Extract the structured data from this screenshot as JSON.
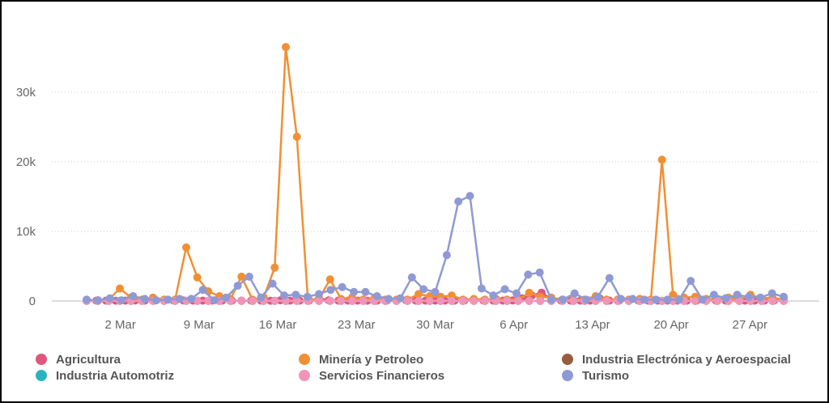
{
  "chart_data": {
    "type": "line",
    "x_tick_labels": [
      "2 Mar",
      "9 Mar",
      "16 Mar",
      "23 Mar",
      "30 Mar",
      "6 Apr",
      "13 Apr",
      "20 Apr",
      "27 Apr"
    ],
    "y_tick_labels": [
      "0",
      "10k",
      "20k",
      "30k"
    ],
    "y_ticks": [
      0,
      10000,
      20000,
      30000
    ],
    "ylim": [
      0,
      38000
    ],
    "x_start": "2020-02-28",
    "x_end": "2020-04-30",
    "grid": true,
    "legend_position": "bottom",
    "series": [
      {
        "name": "Agricultura",
        "color": "#e0567e",
        "values": [
          50,
          60,
          60,
          50,
          60,
          80,
          60,
          60,
          60,
          60,
          80,
          60,
          60,
          60,
          60,
          50,
          60,
          60,
          60,
          50,
          100,
          60,
          60,
          80,
          400,
          100,
          60,
          60,
          60,
          50,
          60,
          60,
          60,
          100,
          60,
          60,
          60,
          60,
          60,
          60,
          60,
          60,
          60,
          60,
          80,
          400,
          800,
          1200,
          300,
          60,
          60,
          60,
          60,
          400,
          60,
          60,
          60,
          60,
          60,
          60,
          60,
          60,
          60,
          60,
          60,
          60,
          60,
          400,
          60,
          60,
          60,
          60,
          60
        ]
      },
      {
        "name": "Minería y Petroleo",
        "color": "#f28f34",
        "values": [
          100,
          100,
          200,
          1800,
          500,
          200,
          500,
          200,
          200,
          7700,
          3400,
          1400,
          700,
          300,
          3500,
          200,
          500,
          4800,
          36500,
          23600,
          200,
          300,
          3100,
          300,
          500,
          200,
          400,
          200,
          200,
          200,
          1000,
          700,
          600,
          800,
          200,
          300,
          200,
          300,
          200,
          200,
          1200,
          600,
          500,
          200,
          200,
          200,
          700,
          200,
          200,
          200,
          300,
          200,
          20300,
          900,
          500,
          600,
          300,
          200,
          500,
          200,
          900,
          400,
          500,
          200
        ]
      },
      {
        "name": "Industria Electrónica y Aeroespacial",
        "color": "#975d3d",
        "values": [
          30,
          30,
          30,
          30,
          30,
          30,
          30,
          30,
          30,
          30,
          30,
          30,
          30,
          30,
          30,
          30,
          30,
          30,
          30,
          30,
          30,
          30,
          30,
          30,
          30,
          30,
          30,
          30,
          30,
          30,
          30,
          30,
          30,
          30,
          30,
          30,
          30,
          30,
          30,
          30,
          30,
          30,
          30,
          30,
          30,
          30,
          30,
          30,
          30,
          30,
          30,
          30,
          30,
          30,
          30,
          30,
          30,
          30,
          30,
          30,
          30,
          30,
          30,
          30
        ]
      },
      {
        "name": "Industria Automotriz",
        "color": "#2ab3bf",
        "values": [
          40,
          40,
          40,
          40,
          40,
          40,
          40,
          40,
          40,
          40,
          40,
          40,
          40,
          40,
          40,
          40,
          40,
          40,
          40,
          40,
          40,
          40,
          40,
          40,
          40,
          40,
          40,
          40,
          40,
          40,
          40,
          40,
          40,
          40,
          40,
          40,
          40,
          40,
          40,
          40,
          40,
          40,
          40,
          40,
          40,
          40,
          40,
          40,
          40,
          40,
          40,
          40,
          40,
          40,
          40,
          40,
          40,
          40,
          40,
          40,
          40,
          40,
          40,
          40
        ]
      },
      {
        "name": "Servicios Financieros",
        "color": "#f194b8",
        "values": [
          20,
          20,
          20,
          20,
          20,
          20,
          20,
          20,
          20,
          20,
          20,
          20,
          20,
          20,
          20,
          20,
          20,
          20,
          20,
          20,
          20,
          20,
          20,
          20,
          20,
          20,
          20,
          20,
          20,
          20,
          20,
          20,
          20,
          20,
          20,
          20,
          20,
          20,
          20,
          20,
          20,
          20,
          20,
          20,
          20,
          20,
          20,
          20,
          20,
          20,
          20,
          20,
          20,
          20,
          20,
          20,
          20,
          20,
          20,
          20,
          20,
          20,
          20,
          20
        ]
      },
      {
        "name": "Turismo",
        "color": "#8f9ad4",
        "values": [
          200,
          100,
          400,
          100,
          700,
          300,
          100,
          200,
          300,
          300,
          1600,
          100,
          500,
          2200,
          3500,
          500,
          2500,
          800,
          900,
          600,
          1000,
          1600,
          2000,
          1300,
          1300,
          700,
          300,
          400,
          3400,
          1700,
          1300,
          6600,
          14300,
          15100,
          1800,
          800,
          1700,
          1100,
          3800,
          4100,
          200,
          200,
          1100,
          200,
          600,
          3300,
          300,
          300,
          200,
          200,
          200,
          200,
          2900,
          200,
          900,
          400,
          900,
          600,
          500,
          1100,
          600
        ]
      }
    ]
  }
}
